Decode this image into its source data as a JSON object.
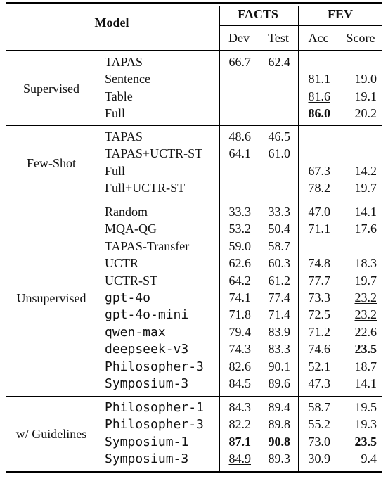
{
  "headers": {
    "model": "Model",
    "facts": "FACTS",
    "fev": "FEV",
    "dev": "Dev",
    "test": "Test",
    "acc": "Acc",
    "score": "Score"
  },
  "groups": [
    {
      "name": "Supervised",
      "rows": [
        {
          "model": "TAPAS",
          "mono": false,
          "dev": "66.7",
          "test": "62.4",
          "acc": "",
          "score": ""
        },
        {
          "model": "Sentence",
          "mono": false,
          "dev": "",
          "test": "",
          "acc": "81.1",
          "score": "19.0"
        },
        {
          "model": "Table",
          "mono": false,
          "dev": "",
          "test": "",
          "acc": "81.6",
          "score": "19.1",
          "acc_u": true
        },
        {
          "model": "Full",
          "mono": false,
          "dev": "",
          "test": "",
          "acc": "86.0",
          "score": "20.2",
          "acc_b": true
        }
      ]
    },
    {
      "name": "Few-Shot",
      "rows": [
        {
          "model": "TAPAS",
          "mono": false,
          "dev": "48.6",
          "test": "46.5",
          "acc": "",
          "score": ""
        },
        {
          "model": "TAPAS+UCTR-ST",
          "mono": false,
          "dev": "64.1",
          "test": "61.0",
          "acc": "",
          "score": ""
        },
        {
          "model": "Full",
          "mono": false,
          "dev": "",
          "test": "",
          "acc": "67.3",
          "score": "14.2"
        },
        {
          "model": "Full+UCTR-ST",
          "mono": false,
          "dev": "",
          "test": "",
          "acc": "78.2",
          "score": "19.7"
        }
      ]
    },
    {
      "name": "Unsupervised",
      "rows": [
        {
          "model": "Random",
          "mono": false,
          "dev": "33.3",
          "test": "33.3",
          "acc": "47.0",
          "score": "14.1"
        },
        {
          "model": "MQA-QG",
          "mono": false,
          "dev": "53.2",
          "test": "50.4",
          "acc": "71.1",
          "score": "17.6"
        },
        {
          "model": "TAPAS-Transfer",
          "mono": false,
          "dev": "59.0",
          "test": "58.7",
          "acc": "",
          "score": ""
        },
        {
          "model": "UCTR",
          "mono": false,
          "dev": "62.6",
          "test": "60.3",
          "acc": "74.8",
          "score": "18.3"
        },
        {
          "model": "UCTR-ST",
          "mono": false,
          "dev": "64.2",
          "test": "61.2",
          "acc": "77.7",
          "score": "19.7"
        },
        {
          "model": "gpt-4o",
          "mono": true,
          "dev": "74.1",
          "test": "77.4",
          "acc": "73.3",
          "score": "23.2",
          "score_u": true
        },
        {
          "model": "gpt-4o-mini",
          "mono": true,
          "dev": "71.8",
          "test": "71.4",
          "acc": "72.5",
          "score": "23.2",
          "score_u": true
        },
        {
          "model": "qwen-max",
          "mono": true,
          "dev": "79.4",
          "test": "83.9",
          "acc": "71.2",
          "score": "22.6"
        },
        {
          "model": "deepseek-v3",
          "mono": true,
          "dev": "74.3",
          "test": "83.3",
          "acc": "74.6",
          "score": "23.5",
          "score_b": true
        },
        {
          "model": "Philosopher-3",
          "mono": true,
          "dev": "82.6",
          "test": "90.1",
          "acc": "52.1",
          "score": "18.7"
        },
        {
          "model": "Symposium-3",
          "mono": true,
          "dev": "84.5",
          "test": "89.6",
          "acc": "47.3",
          "score": "14.1"
        }
      ]
    },
    {
      "name": "w/ Guidelines",
      "rows": [
        {
          "model": "Philosopher-1",
          "mono": true,
          "dev": "84.3",
          "test": "89.4",
          "acc": "58.7",
          "score": "19.5"
        },
        {
          "model": "Philosopher-3",
          "mono": true,
          "dev": "82.2",
          "test": "89.8",
          "acc": "55.2",
          "score": "19.3",
          "test_u": true
        },
        {
          "model": "Symposium-1",
          "mono": true,
          "dev": "87.1",
          "test": "90.8",
          "acc": "73.0",
          "score": "23.5",
          "dev_b": true,
          "test_b": true,
          "score_b": true
        },
        {
          "model": "Symposium-3",
          "mono": true,
          "dev": "84.9",
          "test": "89.3",
          "acc": "30.9",
          "score": "9.4",
          "dev_u": true
        }
      ]
    }
  ]
}
